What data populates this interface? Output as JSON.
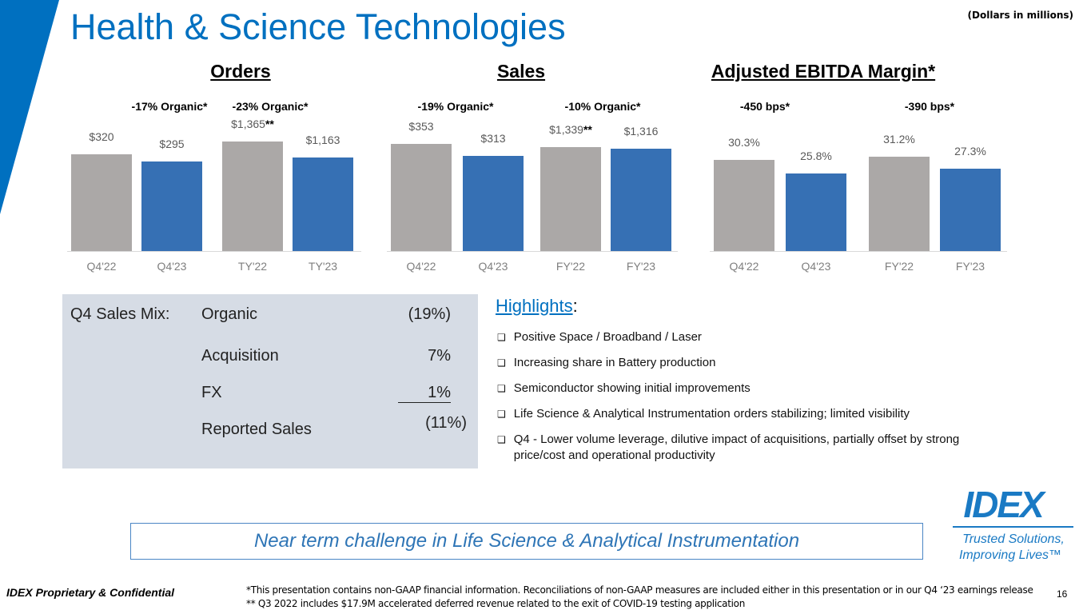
{
  "title": "Health & Science Technologies",
  "units": "(Dollars in millions)",
  "colors": {
    "accent": "#0070C0",
    "prior": "#ABA8A7",
    "current": "#3670B4",
    "mix_bg": "#D6DCE5"
  },
  "chart_data": [
    {
      "type": "bar",
      "title": "Orders",
      "groups": [
        {
          "note": "-17% Organic*",
          "categories": [
            "Q4'22",
            "Q4'23"
          ],
          "values": [
            320,
            295
          ],
          "labels": [
            "$320",
            "$295"
          ],
          "suffix": [
            "",
            ""
          ]
        },
        {
          "note": "-23% Organic*",
          "categories": [
            "TY'22",
            "TY'23"
          ],
          "values": [
            1365,
            1163
          ],
          "labels": [
            "$1,365",
            "$1,163"
          ],
          "suffix": [
            "**",
            ""
          ]
        }
      ]
    },
    {
      "type": "bar",
      "title": "Sales",
      "groups": [
        {
          "note": "-19% Organic*",
          "categories": [
            "Q4'22",
            "Q4'23"
          ],
          "values": [
            353,
            313
          ],
          "labels": [
            "$353",
            "$313"
          ],
          "suffix": [
            "",
            ""
          ]
        },
        {
          "note": "-10% Organic*",
          "categories": [
            "FY'22",
            "FY'23"
          ],
          "values": [
            1339,
            1316
          ],
          "labels": [
            "$1,339",
            "$1,316"
          ],
          "suffix": [
            "**",
            ""
          ]
        }
      ]
    },
    {
      "type": "bar",
      "title": "Adjusted EBITDA Margin*",
      "groups": [
        {
          "note": "-450 bps*",
          "categories": [
            "Q4'22",
            "Q4'23"
          ],
          "values": [
            30.3,
            25.8
          ],
          "labels": [
            "30.3%",
            "25.8%"
          ],
          "suffix": [
            "",
            ""
          ]
        },
        {
          "note": "-390 bps*",
          "categories": [
            "FY'22",
            "FY'23"
          ],
          "values": [
            31.2,
            27.3
          ],
          "labels": [
            "31.2%",
            "27.3%"
          ],
          "suffix": [
            "",
            ""
          ]
        }
      ]
    }
  ],
  "mix": {
    "heading": "Q4 Sales Mix:",
    "rows": [
      {
        "label": "Organic",
        "value": "(19%)"
      },
      {
        "label": "Acquisition",
        "value": "7%"
      },
      {
        "label": "FX",
        "value": "1%"
      },
      {
        "label": "Reported Sales",
        "value": "(11%)"
      }
    ]
  },
  "highlights": {
    "title": "Highlights",
    "colon": ":",
    "items": [
      "Positive Space / Broadband / Laser",
      "Increasing share in Battery production",
      "Semiconductor showing initial improvements",
      "Life Science & Analytical Instrumentation orders stabilizing; limited visibility",
      "Q4 - Lower volume leverage, dilutive impact of acquisitions, partially offset by strong price/cost and operational productivity"
    ]
  },
  "callout": "Near term challenge in Life Science & Analytical Instrumentation",
  "logo": {
    "name": "IDEX",
    "tagline1": "Trusted Solutions,",
    "tagline2": "Improving Lives™"
  },
  "footer": {
    "confidential": "IDEX Proprietary & Confidential",
    "note1": "*This presentation contains non-GAAP financial information. Reconciliations of non-GAAP measures are included either in this presentation or in our Q4 ‘23 earnings release",
    "note2": "** Q3 2022 includes $17.9M accelerated deferred revenue related to the exit of COVID-19 testing application",
    "page": "16"
  }
}
